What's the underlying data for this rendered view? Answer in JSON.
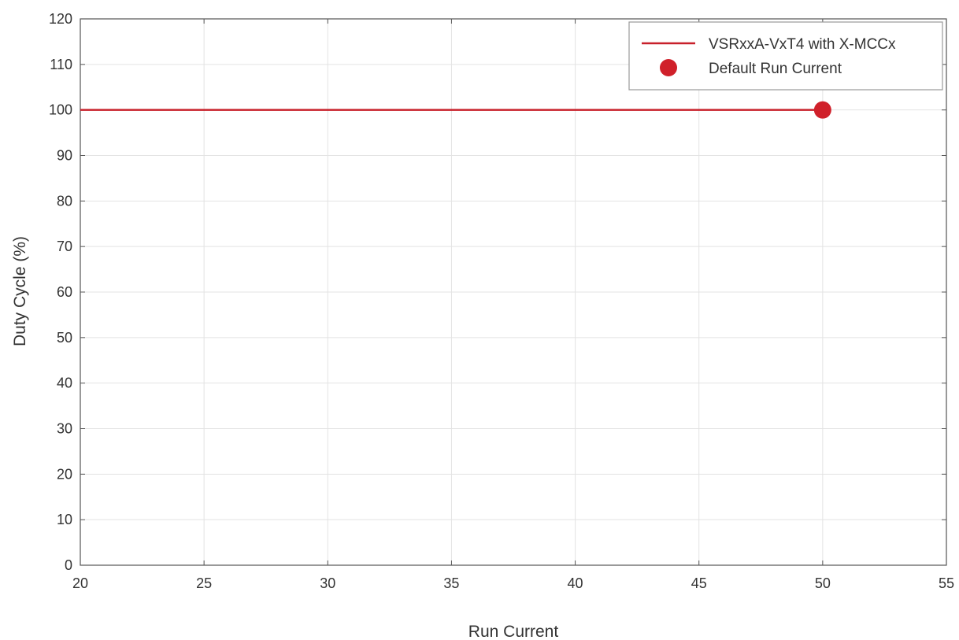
{
  "chart_data": {
    "type": "line",
    "xlabel": "Run Current",
    "ylabel": "Duty Cycle (%)",
    "xlim": [
      20,
      55
    ],
    "ylim": [
      0,
      120
    ],
    "x_ticks": [
      20,
      25,
      30,
      35,
      40,
      45,
      50,
      55
    ],
    "y_ticks": [
      0,
      10,
      20,
      30,
      40,
      50,
      60,
      70,
      80,
      90,
      100,
      110,
      120
    ],
    "grid": true,
    "legend_position": "top-right",
    "series": [
      {
        "name": "VSRxxA-VxT4 with X-MCCx",
        "kind": "line",
        "color": "#c8202a",
        "x": [
          20,
          50
        ],
        "y": [
          100,
          100
        ]
      },
      {
        "name": "Default Run Current",
        "kind": "scatter",
        "color": "#d0202a",
        "x": [
          50
        ],
        "y": [
          100
        ]
      }
    ]
  }
}
